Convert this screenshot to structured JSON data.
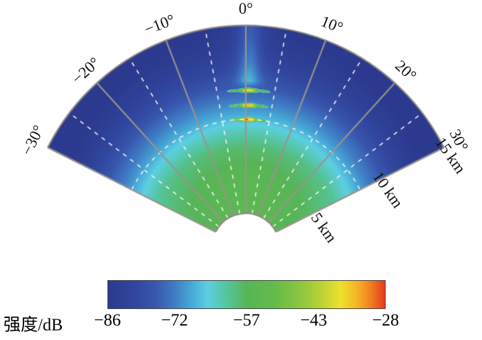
{
  "figure": {
    "background": "#ffffff"
  },
  "chart_data": {
    "type": "heatmap",
    "projection": "polar-fan",
    "title": "",
    "azimuth_limits_deg": [
      -30,
      30
    ],
    "range_limits_km": [
      5,
      15
    ],
    "azimuth_ticks_deg": [
      -30,
      -20,
      -10,
      0,
      10,
      20,
      30
    ],
    "azimuth_tick_labels": [
      "−30°",
      "−20°",
      "−10°",
      "0°",
      "10°",
      "20°",
      "30°"
    ],
    "azimuth_minor_ticks_deg": [
      -25,
      -15,
      -5,
      5,
      15,
      25
    ],
    "range_ticks_km": [
      5,
      10,
      15
    ],
    "range_tick_labels": [
      "5 km",
      "10 km",
      "15 km"
    ],
    "range_grid_km": [
      10
    ],
    "grid": {
      "solid_line_color": "#9a948c",
      "dashed_line_color": "#f5f5ef",
      "boundary_color": "#8f8a82"
    },
    "background_profile": {
      "range_km": [
        5.0,
        7.0,
        8.5,
        9.5,
        10.3,
        11.0,
        12.0,
        13.0,
        14.0,
        15.0
      ],
      "intensity_db": [
        -54,
        -55.5,
        -58.5,
        -63.5,
        -68.5,
        -72,
        -77.5,
        -82,
        -84.8,
        -86.5
      ]
    },
    "edge_darkening_db": 2.5,
    "azimuth_ridge": {
      "azimuth_deg": 0.5,
      "start_km": 11.65,
      "components": [
        {
          "amplitude_db": 7.5,
          "sigma_deg": 1.7
        },
        {
          "amplitude_db": 3.0,
          "sigma_deg": 3.5
        }
      ]
    },
    "targets": [
      {
        "azimuth_deg": 0.5,
        "range_km": 11.55,
        "peak_db": -36
      },
      {
        "azimuth_deg": 0.5,
        "range_km": 10.75,
        "peak_db": -33
      },
      {
        "azimuth_deg": 0.5,
        "range_km": 10.0,
        "peak_db": -28
      }
    ],
    "target_shape": {
      "sigma_azimuth_deg": 1.1,
      "sigma_range_km": 0.075,
      "falloff_db": 8.7,
      "sidelobes": {
        "offset_deg": 2.6,
        "delta_db": -14,
        "sigma_azimuth_deg": 0.75,
        "sigma_range_km": 0.055
      }
    },
    "colorbar": {
      "label": "强度/dB",
      "min": -86,
      "max": -28,
      "ticks": [
        -86,
        -72,
        -57,
        -43,
        -28
      ],
      "tick_labels": [
        "−86",
        "−72",
        "−57",
        "−43",
        "−28"
      ]
    },
    "colormap": [
      {
        "t": 0.0,
        "color": "#2b3a8e"
      },
      {
        "t": 0.1,
        "color": "#31479f"
      },
      {
        "t": 0.17,
        "color": "#3857ae"
      },
      {
        "t": 0.24,
        "color": "#3f7cc4"
      },
      {
        "t": 0.3,
        "color": "#47a8d6"
      },
      {
        "t": 0.36,
        "color": "#5ccfe2"
      },
      {
        "t": 0.43,
        "color": "#55c49b"
      },
      {
        "t": 0.5,
        "color": "#57b558"
      },
      {
        "t": 0.6,
        "color": "#63bb4a"
      },
      {
        "t": 0.7,
        "color": "#8ec63f"
      },
      {
        "t": 0.78,
        "color": "#c0d434"
      },
      {
        "t": 0.84,
        "color": "#ece22b"
      },
      {
        "t": 0.9,
        "color": "#f5b325"
      },
      {
        "t": 0.95,
        "color": "#f07d20"
      },
      {
        "t": 1.0,
        "color": "#e73a1e"
      }
    ]
  }
}
